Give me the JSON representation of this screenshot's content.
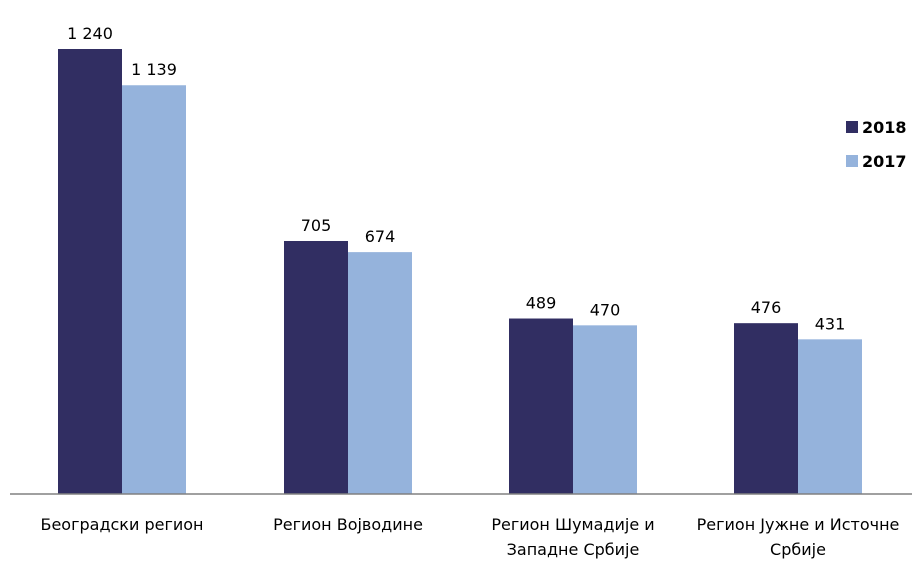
{
  "chart_data": {
    "type": "bar",
    "categories": [
      [
        "Београдски регион"
      ],
      [
        "Регион Војводине"
      ],
      [
        "Регион Шумадије и",
        "Западне Србије"
      ],
      [
        "Регион Јужне и Источне",
        "Србије"
      ]
    ],
    "series": [
      {
        "name": "2018",
        "color": "#312e62",
        "values": [
          1240,
          705,
          489,
          476
        ],
        "labels": [
          "1 240",
          "705",
          "489",
          "476"
        ]
      },
      {
        "name": "2017",
        "color": "#95b3dc",
        "values": [
          1139,
          674,
          470,
          431
        ],
        "labels": [
          "1 139",
          "674",
          "470",
          "431"
        ]
      }
    ],
    "title": "",
    "xlabel": "",
    "ylabel": "",
    "ylim": [
      0,
      1240
    ],
    "grid": false,
    "legend": "right",
    "axis_color": "#808080"
  }
}
